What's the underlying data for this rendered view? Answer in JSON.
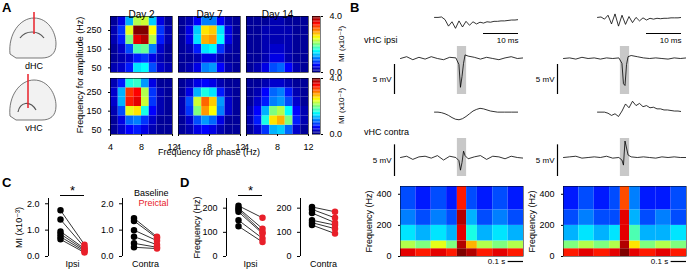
{
  "panel_labels": [
    "A",
    "B",
    "C",
    "D"
  ],
  "chart_data": [
    {
      "type": "heatmap",
      "columns": [
        "Day 2",
        "Day 7",
        "Day 14"
      ],
      "rows": [
        "dHC",
        "vHC"
      ],
      "x_edges": [
        4,
        5,
        6,
        7,
        8,
        9,
        10,
        11,
        12
      ],
      "y_edges": [
        25,
        75,
        125,
        175,
        225,
        275,
        325
      ],
      "cells": [
        [
          [
            [
              0.2,
              0.3,
              0.6,
              1.4,
              1.5,
              0.8,
              0.3,
              0.2
            ],
            [
              0.1,
              0.2,
              0.3,
              0.6,
              0.7,
              0.4,
              0.2,
              0.1
            ],
            [
              0.1,
              0.3,
              0.8,
              1.8,
              1.9,
              1.0,
              0.3,
              0.1
            ],
            [
              0.2,
              0.6,
              2.0,
              3.6,
              3.8,
              2.2,
              0.6,
              0.2
            ],
            [
              0.2,
              0.7,
              2.4,
              4.0,
              4.0,
              2.5,
              0.7,
              0.2
            ],
            [
              0.1,
              0.4,
              1.2,
              2.2,
              2.3,
              1.3,
              0.4,
              0.1
            ]
          ],
          [
            [
              0.1,
              0.2,
              0.4,
              1.0,
              1.1,
              0.5,
              0.2,
              0.1
            ],
            [
              0.1,
              0.1,
              0.2,
              0.4,
              0.4,
              0.2,
              0.1,
              0.1
            ],
            [
              0.1,
              0.2,
              0.6,
              1.4,
              1.5,
              0.7,
              0.2,
              0.1
            ],
            [
              0.1,
              0.4,
              1.4,
              2.8,
              2.9,
              1.5,
              0.4,
              0.1
            ],
            [
              0.1,
              0.4,
              1.3,
              2.6,
              2.7,
              1.4,
              0.4,
              0.1
            ],
            [
              0.1,
              0.2,
              0.5,
              1.0,
              1.0,
              0.5,
              0.2,
              0.1
            ]
          ],
          [
            [
              0.1,
              0.2,
              0.4,
              0.8,
              0.9,
              0.5,
              0.2,
              0.1
            ],
            [
              0.1,
              0.1,
              0.2,
              0.4,
              0.4,
              0.2,
              0.1,
              0.1
            ],
            [
              0.1,
              0.1,
              0.2,
              0.3,
              0.3,
              0.2,
              0.1,
              0.1
            ],
            [
              0.1,
              0.1,
              0.2,
              0.2,
              0.2,
              0.2,
              0.1,
              0.1
            ],
            [
              0.1,
              0.1,
              0.2,
              0.2,
              0.2,
              0.2,
              0.1,
              0.1
            ],
            [
              0.1,
              0.1,
              0.1,
              0.2,
              0.2,
              0.1,
              0.1,
              0.1
            ]
          ]
        ],
        [
          [
            [
              0.1,
              0.3,
              0.5,
              0.6,
              0.4,
              0.2,
              0.1,
              0.1
            ],
            [
              0.1,
              0.4,
              0.9,
              1.0,
              0.7,
              0.3,
              0.1,
              0.1
            ],
            [
              0.2,
              0.8,
              2.4,
              2.6,
              1.6,
              0.5,
              0.2,
              0.1
            ],
            [
              0.3,
              1.2,
              3.4,
              3.6,
              2.3,
              0.7,
              0.2,
              0.1
            ],
            [
              0.3,
              1.2,
              3.3,
              3.5,
              2.2,
              0.7,
              0.2,
              0.1
            ],
            [
              0.2,
              0.6,
              1.6,
              1.7,
              1.1,
              0.4,
              0.1,
              0.1
            ]
          ],
          [
            [
              0.1,
              0.2,
              0.4,
              0.5,
              0.4,
              0.2,
              0.1,
              0.1
            ],
            [
              0.1,
              0.3,
              0.8,
              1.1,
              0.9,
              0.4,
              0.1,
              0.1
            ],
            [
              0.2,
              0.7,
              2.0,
              2.9,
              2.5,
              1.0,
              0.3,
              0.1
            ],
            [
              0.2,
              0.8,
              2.3,
              3.1,
              2.7,
              1.1,
              0.3,
              0.1
            ],
            [
              0.1,
              0.4,
              1.2,
              1.6,
              1.4,
              0.6,
              0.2,
              0.1
            ],
            [
              0.1,
              0.2,
              0.4,
              0.5,
              0.4,
              0.2,
              0.1,
              0.1
            ]
          ],
          [
            [
              0.1,
              0.3,
              0.7,
              1.2,
              1.3,
              0.9,
              0.3,
              0.1
            ],
            [
              0.2,
              0.6,
              1.6,
              2.6,
              2.8,
              2.0,
              0.6,
              0.2
            ],
            [
              0.2,
              0.5,
              1.2,
              2.0,
              2.2,
              1.5,
              0.5,
              0.2
            ],
            [
              0.1,
              0.3,
              0.6,
              1.0,
              1.1,
              0.8,
              0.3,
              0.1
            ],
            [
              0.1,
              0.2,
              0.5,
              0.9,
              1.0,
              0.6,
              0.2,
              0.1
            ],
            [
              0.1,
              0.1,
              0.2,
              0.3,
              0.3,
              0.2,
              0.1,
              0.1
            ]
          ]
        ]
      ],
      "xlim": [
        4,
        12
      ],
      "xticks": [
        4,
        8,
        12
      ],
      "ylim": [
        25,
        325
      ],
      "yticks": [
        50,
        150,
        250
      ],
      "xlabel": "Frequency for phase (Hz)",
      "ylabel": "Frequency for amplitude (Hz)",
      "color": "jet",
      "colorbar": {
        "label": "MI (x10⁻³)",
        "range": [
          0,
          4
        ],
        "ticks": [
          0,
          4
        ]
      }
    },
    {
      "type": "line",
      "rows": [
        "vHC ipsi",
        "vHC contra"
      ],
      "x": [
        0,
        0.04,
        0.08,
        0.12,
        0.16,
        0.2,
        0.24,
        0.28,
        0.32,
        0.36,
        0.38,
        0.39,
        0.4,
        0.41,
        0.42,
        0.44,
        0.48,
        0.52,
        0.56,
        0.6,
        0.64,
        0.68,
        0.72,
        0.76,
        0.8
      ],
      "xlim": [
        0,
        0.8
      ],
      "ylims": [
        [
          -6,
          2
        ],
        [
          -3,
          3
        ]
      ],
      "tick_labels": false,
      "scale_bar": {
        "value": 5,
        "label": "5 mV"
      },
      "inset_x": [
        0,
        1,
        2,
        3,
        4,
        5,
        6,
        7,
        8,
        9,
        10,
        11,
        12,
        13,
        14,
        15,
        16,
        17,
        18,
        19,
        20,
        21,
        22,
        23,
        24
      ],
      "inset_xlim": [
        0,
        24
      ],
      "inset_ylim": [
        -3,
        2.5
      ],
      "inset_scale_bar": {
        "value": 10,
        "label": "10 ms"
      },
      "spectrogram": {
        "x_edges": [
          0,
          0.1,
          0.2,
          0.3,
          0.37,
          0.43,
          0.5,
          0.6,
          0.7,
          0.8
        ],
        "y_edges": [
          0,
          50,
          100,
          200,
          300,
          450
        ],
        "ylim": [
          0,
          450
        ],
        "yticks": [
          0,
          200,
          400
        ],
        "ylabel": "Frequency (Hz)",
        "zlim": [
          0,
          1
        ],
        "color": "jet",
        "scale_bar": {
          "value": 0.1,
          "label": "0.1 s"
        }
      },
      "events": [
        {
          "highlight": [
            0.37,
            0.43
          ],
          "traces": [
            [
              0,
              0.3,
              -0.2,
              0.2,
              -0.1,
              0.3,
              0,
              -0.2,
              0.2,
              0.1,
              -1.0,
              -4.8,
              -3.0,
              -0.8,
              0.6,
              0.4,
              0.2,
              -0.1,
              0.2,
              0,
              -0.2,
              0.1,
              0.3,
              0,
              0.1
            ],
            [
              0,
              0.2,
              -0.3,
              0.1,
              0.2,
              -0.1,
              0.3,
              -0.4,
              0.2,
              0,
              -0.5,
              -2.0,
              -0.8,
              1.0,
              0.3,
              -0.2,
              0.1,
              0.3,
              -0.3,
              0.2,
              0.1,
              -0.2,
              0.2,
              0,
              -0.1
            ]
          ],
          "insets": [
            [
              0,
              0,
              0.1,
              -0.5,
              -2.0,
              -1.0,
              -2.5,
              -0.8,
              -2.2,
              -0.9,
              -1.8,
              -1.0,
              -1.5,
              -1.1,
              -1.3,
              -1.0,
              -1.1,
              -0.9,
              -0.9,
              -0.8,
              -0.8,
              -0.7,
              -0.6,
              -0.6,
              -0.5
            ],
            [
              0,
              0,
              -0.1,
              -0.3,
              -0.6,
              -1.0,
              -1.3,
              -1.4,
              -1.2,
              -0.8,
              -0.3,
              0.2,
              0.5,
              0.7,
              0.6,
              0.4,
              0.2,
              0.1,
              0,
              0,
              0,
              0,
              0,
              0,
              0
            ]
          ],
          "spectrogram": [
            [
              0.9,
              0.85,
              0.9,
              0.85,
              1.0,
              0.95,
              0.85,
              0.9,
              0.85
            ],
            [
              0.55,
              0.5,
              0.6,
              0.5,
              0.95,
              0.7,
              0.55,
              0.5,
              0.55
            ],
            [
              0.35,
              0.3,
              0.35,
              0.3,
              0.9,
              0.4,
              0.3,
              0.35,
              0.3
            ],
            [
              0.25,
              0.2,
              0.25,
              0.2,
              0.95,
              0.3,
              0.2,
              0.25,
              0.2
            ],
            [
              0.2,
              0.15,
              0.2,
              0.15,
              0.85,
              0.2,
              0.15,
              0.2,
              0.15
            ]
          ]
        },
        {
          "highlight": [
            0.37,
            0.43
          ],
          "traces": [
            [
              0,
              0.1,
              -0.1,
              0.2,
              0,
              0.1,
              -0.1,
              0.1,
              0,
              0.1,
              -0.8,
              -4.2,
              -4.5,
              -1.0,
              0.3,
              0.5,
              0.3,
              0.1,
              0,
              0.1,
              0,
              -0.1,
              0.1,
              0,
              0.1
            ],
            [
              0,
              0.1,
              0.2,
              -0.1,
              0,
              0.1,
              0,
              0.2,
              -0.1,
              0,
              -0.4,
              -1.2,
              2.6,
              1.5,
              0.4,
              0.1,
              0,
              0.1,
              0,
              -0.1,
              0.1,
              0,
              0.1,
              0,
              0
            ]
          ],
          "insets": [
            [
              0,
              0.1,
              -0.4,
              0.5,
              -1.5,
              0.8,
              -2.0,
              0.5,
              -1.6,
              0.2,
              -1.2,
              0,
              -0.8,
              -0.1,
              -0.6,
              -0.2,
              -0.4,
              -0.2,
              -0.3,
              -0.2,
              -0.2,
              -0.1,
              -0.1,
              -0.1,
              0
            ],
            [
              0,
              0,
              0,
              -0.2,
              -0.6,
              -0.3,
              -0.8,
              0.2,
              1.5,
              0.8,
              2.0,
              1.2,
              1.6,
              1.0,
              1.2,
              0.8,
              0.9,
              0.6,
              0.6,
              0.4,
              0.4,
              0.3,
              0.2,
              0.2,
              0.1
            ]
          ],
          "spectrogram": [
            [
              0.85,
              0.9,
              0.85,
              0.9,
              1.0,
              0.9,
              0.85,
              0.9,
              0.85
            ],
            [
              0.5,
              0.55,
              0.5,
              0.55,
              0.95,
              0.65,
              0.5,
              0.55,
              0.5
            ],
            [
              0.3,
              0.35,
              0.3,
              0.35,
              0.9,
              0.45,
              0.3,
              0.3,
              0.35
            ],
            [
              0.2,
              0.25,
              0.2,
              0.2,
              0.9,
              0.3,
              0.2,
              0.25,
              0.2
            ],
            [
              0.15,
              0.2,
              0.15,
              0.2,
              0.8,
              0.25,
              0.15,
              0.15,
              0.2
            ]
          ]
        }
      ]
    },
    {
      "type": "scatter",
      "categories": [
        "Ipsi",
        "Contra"
      ],
      "series": [
        {
          "name": "Baseline",
          "color": "#000000",
          "values": [
            [
              1.75,
              1.4,
              0.95,
              0.85,
              0.75,
              0.65
            ],
            [
              1.45,
              1.35,
              1.0,
              0.75,
              0.5,
              0.35
            ]
          ]
        },
        {
          "name": "Preictal",
          "color": "#e8202a",
          "values": [
            [
              0.45,
              0.35,
              0.3,
              0.25,
              0.2,
              0.15
            ],
            [
              0.75,
              0.7,
              0.6,
              0.45,
              0.35,
              0.3
            ]
          ]
        }
      ],
      "ylabel": "MI (x10⁻³)",
      "ylim": [
        0,
        2.2
      ],
      "yticks": [
        0,
        1,
        2
      ],
      "marker": "circle",
      "legend": "top-right",
      "annotations": [
        {
          "category": "Ipsi",
          "text": "*"
        }
      ]
    },
    {
      "type": "scatter",
      "categories": [
        "Ipsi",
        "Contra"
      ],
      "series": [
        {
          "name": "Baseline",
          "color": "#000000",
          "values": [
            [
              210,
              200,
              195,
              185,
              150,
              125
            ],
            [
              205,
              195,
              180,
              150,
              140,
              130
            ]
          ]
        },
        {
          "name": "Preictal",
          "color": "#e8202a",
          "values": [
            [
              160,
              115,
              100,
              95,
              75,
              60
            ],
            [
              185,
              160,
              140,
              130,
              115,
              95
            ]
          ]
        }
      ],
      "ylabel": "Frequency (Hz)",
      "ylim": [
        0,
        240
      ],
      "yticks": [
        0,
        100,
        200
      ],
      "marker": "circle",
      "annotations": [
        {
          "category": "Ipsi",
          "text": "*"
        }
      ]
    }
  ]
}
